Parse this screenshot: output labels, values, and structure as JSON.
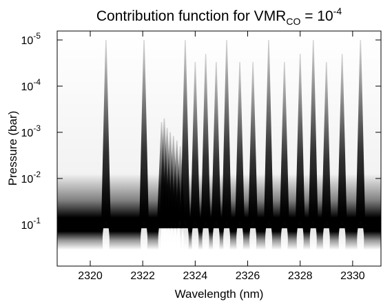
{
  "chart_data": {
    "type": "contribution",
    "title": {
      "text": "Contribution function for VMR",
      "sub": "CO",
      "mid": " = 10",
      "sup": "-4"
    },
    "x_label": "Wavelength (nm)",
    "y_label": "Pressure (bar)",
    "xlim": [
      2318.74,
      2331.08
    ],
    "xticks": [
      2320,
      2322,
      2324,
      2326,
      2328,
      2330
    ],
    "ylim": [
      0.79,
      6.4e-06
    ],
    "y_log": true,
    "yticks": [
      {
        "value": 1e-05,
        "label": "10",
        "exponent": "-5"
      },
      {
        "value": 0.0001,
        "label": "10",
        "exponent": "-4"
      },
      {
        "value": 0.001,
        "label": "10",
        "exponent": "-3"
      },
      {
        "value": 0.01,
        "label": "10",
        "exponent": "-2"
      },
      {
        "value": 0.1,
        "label": "10",
        "exponent": "-1"
      }
    ],
    "color": "#000000",
    "lines": {
      "wavelengths": [
        2320.6,
        2322.05,
        2322.72,
        2322.82,
        2322.93,
        2323.05,
        2323.17,
        2323.3,
        2323.43,
        2323.62,
        2324.0,
        2324.4,
        2324.8,
        2325.2,
        2325.7,
        2326.2,
        2326.8,
        2327.4,
        2328.0,
        2328.5,
        2329.0,
        2329.6,
        2330.3
      ],
      "top_pressure": [
        1e-05,
        1e-05,
        0.0006,
        0.0005,
        0.0008,
        0.001,
        0.0012,
        0.0015,
        0.002,
        1e-05,
        3e-05,
        2e-05,
        3e-05,
        1e-05,
        3e-05,
        3e-05,
        1e-05,
        3e-05,
        2e-05,
        1e-05,
        3e-05,
        2e-05,
        1e-05
      ]
    }
  }
}
